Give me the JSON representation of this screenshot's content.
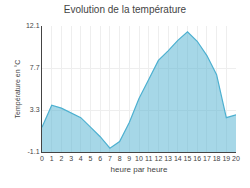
{
  "chart_data": {
    "type": "area",
    "title": "Evolution de la température",
    "xlabel": "heure par heure",
    "ylabel": "Température en °C",
    "x": [
      0,
      1,
      2,
      3,
      4,
      5,
      6,
      7,
      8,
      9,
      10,
      11,
      12,
      13,
      14,
      15,
      16,
      17,
      18,
      19,
      20
    ],
    "values": [
      1.5,
      3.8,
      3.5,
      3.0,
      2.5,
      1.5,
      0.5,
      -0.7,
      0.0,
      2.0,
      4.5,
      6.5,
      8.5,
      9.5,
      10.6,
      11.5,
      10.5,
      9.0,
      7.0,
      2.5,
      2.8
    ],
    "color": "#4db0d0",
    "xlim": [
      0,
      20
    ],
    "xticks": [
      0,
      1,
      2,
      3,
      4,
      5,
      6,
      7,
      8,
      9,
      10,
      11,
      12,
      13,
      14,
      15,
      16,
      17,
      18,
      19,
      20
    ],
    "ylim": [
      -1.1,
      12.1
    ],
    "yticks": [
      -1.1,
      3.3,
      7.7,
      12.1
    ],
    "grid": true
  }
}
